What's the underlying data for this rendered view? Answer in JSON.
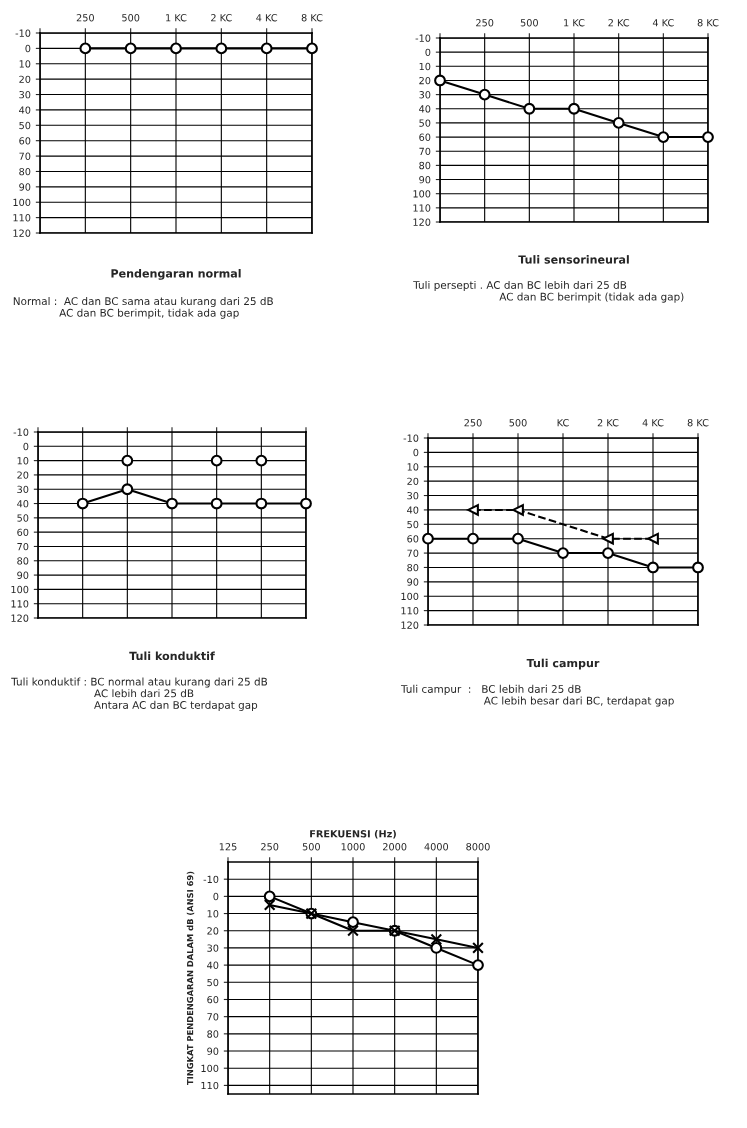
{
  "chart_data": [
    {
      "type": "line",
      "title": "Pendengaran normal",
      "subtitle": "Normal :  AC dan BC sama atau kurang dari 25 dB\n              AC dan BC berimpit, tidak ada gap",
      "categories": [
        null,
        "250",
        "500",
        "1 KC",
        "2 KC",
        "4 KC",
        "8 KC"
      ],
      "ylim": [
        120,
        -10
      ],
      "yticks": [
        -10,
        0,
        10,
        20,
        30,
        40,
        50,
        60,
        70,
        80,
        90,
        100,
        110,
        120
      ],
      "grid": true,
      "marker": "circle",
      "series": [
        {
          "color": "#000000",
          "values": [
            null,
            0,
            0,
            0,
            0,
            0,
            0
          ]
        }
      ]
    },
    {
      "type": "line",
      "title": "Tuli sensorineural",
      "subtitle": "Tuli persepti . AC dan BC lebih dari 25 dB\n                          AC dan BC berimpit (tidak ada gap)",
      "categories": [
        null,
        "250",
        "500",
        "1 KC",
        "2 KC",
        "4 KC",
        "8 KC"
      ],
      "ylim": [
        120,
        -10
      ],
      "yticks": [
        -10,
        0,
        10,
        20,
        30,
        40,
        50,
        60,
        70,
        80,
        90,
        100,
        110,
        120
      ],
      "grid": true,
      "marker": "circle",
      "series": [
        {
          "color": "#000000",
          "values": [
            20,
            30,
            40,
            40,
            50,
            60,
            60
          ]
        }
      ]
    },
    {
      "type": "line",
      "title": "Tuli konduktif",
      "subtitle": "Tuli konduktif : BC normal atau kurang dari 25 dB\n                         AC lebih dari 25 dB\n                         Antara AC dan BC terdapat gap",
      "categories": [
        null,
        null,
        null,
        null,
        null,
        null,
        null
      ],
      "ylim": [
        120,
        -10
      ],
      "yticks": [
        -10,
        0,
        10,
        20,
        30,
        40,
        50,
        60,
        70,
        80,
        90,
        100,
        110,
        120
      ],
      "grid": true,
      "marker": "circle",
      "tick_labels": "y",
      "series": [
        {
          "color": "#000000",
          "values": [
            null,
            40,
            30,
            40,
            40,
            40,
            40
          ]
        },
        {
          "color": "#000000",
          "values": [
            null,
            null,
            10,
            null,
            10,
            10,
            null
          ],
          "type": "scatter"
        }
      ]
    },
    {
      "type": "line",
      "title": "Tuli campur",
      "subtitle": "Tuli campur  :   BC lebih dari 25 dB\n                         AC lebih besar dari BC, terdapat gap",
      "categories": [
        null,
        "250",
        "500",
        "KC",
        "2 KC",
        "4 KC",
        "8 KC"
      ],
      "ylim": [
        120,
        -10
      ],
      "yticks": [
        -10,
        0,
        10,
        20,
        30,
        40,
        50,
        60,
        70,
        80,
        90,
        100,
        110,
        120
      ],
      "grid": true,
      "marker": "circle",
      "series": [
        {
          "color": "#000000",
          "values": [
            60,
            60,
            60,
            70,
            70,
            80,
            80
          ]
        },
        {
          "color": "#000000",
          "values": [
            null,
            40,
            40,
            null,
            60,
            60,
            null
          ],
          "line_style": "dashed",
          "marker": "triangle"
        }
      ]
    },
    {
      "type": "line",
      "xlabel": "FREKUENSI (Hz)",
      "ylabel": "TINGKAT PENDENGARAN DALAM dB (ANSI 69)",
      "log": "x",
      "xlim": [
        125,
        8000
      ],
      "xticks": [
        125,
        250,
        500,
        1000,
        2000,
        4000,
        8000
      ],
      "ylim": [
        115,
        -20
      ],
      "yticks": [
        -10,
        0,
        10,
        20,
        30,
        40,
        50,
        60,
        70,
        80,
        90,
        100,
        110
      ],
      "grid": true,
      "marker": "circle",
      "series": [
        {
          "color": "#000000",
          "x": [
            250,
            500,
            1000,
            2000,
            4000,
            8000
          ],
          "values": [
            0,
            10,
            15,
            20,
            30,
            40
          ]
        },
        {
          "color": "#000000",
          "x": [
            250,
            500,
            1000,
            2000,
            4000,
            8000
          ],
          "values": [
            5,
            10,
            20,
            20,
            25,
            30
          ],
          "marker": "cross"
        }
      ]
    }
  ]
}
